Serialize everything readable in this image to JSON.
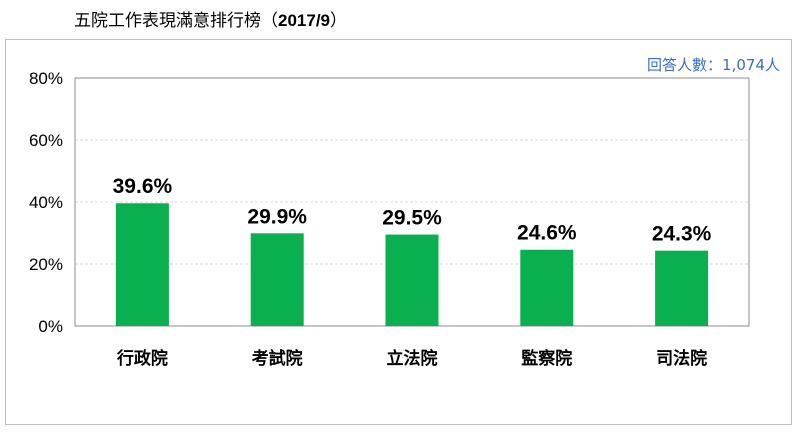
{
  "page": {
    "title": "五院工作表現滿意排行榜（",
    "title_date": "2017/9",
    "title_close": "）"
  },
  "respondents": "回答人數：1,074人",
  "colors": {
    "bar": "#0ab050",
    "grid": "#d7d7d7",
    "axis_frame": "#8c8c8c",
    "respondents_text": "#3a6fc9"
  },
  "chart_data": {
    "type": "bar",
    "title": "五院工作表現滿意排行榜（2017/9）",
    "categories": [
      "行政院",
      "考試院",
      "立法院",
      "監察院",
      "司法院"
    ],
    "values": [
      39.6,
      29.9,
      29.5,
      24.6,
      24.3
    ],
    "value_labels": [
      "39.6%",
      "29.9%",
      "29.5%",
      "24.6%",
      "24.3%"
    ],
    "ylim": [
      0,
      80
    ],
    "yticks": [
      0,
      20,
      40,
      60,
      80
    ],
    "ytick_labels": [
      "0%",
      "20%",
      "40%",
      "60%",
      "80%"
    ],
    "grid": true,
    "xlabel": "",
    "ylabel": ""
  }
}
